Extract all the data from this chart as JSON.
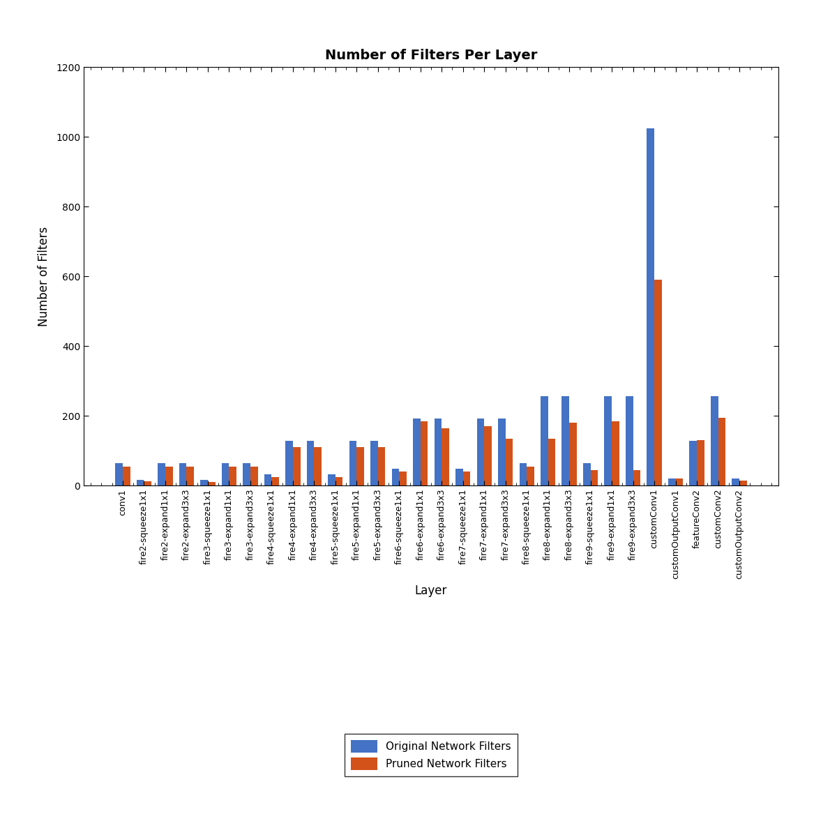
{
  "categories": [
    "conv1",
    "fire2-squeeze1x1",
    "fire2-expand1x1",
    "fire2-expand3x3",
    "fire3-squeeze1x1",
    "fire3-expand1x1",
    "fire3-expand3x3",
    "fire4-squeeze1x1",
    "fire4-expand1x1",
    "fire4-expand3x3",
    "fire5-squeeze1x1",
    "fire5-expand1x1",
    "fire5-expand3x3",
    "fire6-squeeze1x1",
    "fire6-expand1x1",
    "fire6-expand3x3",
    "fire7-squeeze1x1",
    "fire7-expand1x1",
    "fire7-expand3x3",
    "fire8-squeeze1x1",
    "fire8-expand1x1",
    "fire8-expand3x3",
    "fire9-squeeze1x1",
    "fire9-expand1x1",
    "fire9-expand3x3",
    "customConv1",
    "customOutputConv1",
    "featureConv2",
    "customConv2",
    "customOutputConv2"
  ],
  "original": [
    64,
    16,
    64,
    64,
    16,
    64,
    64,
    32,
    128,
    128,
    32,
    128,
    128,
    48,
    192,
    192,
    48,
    192,
    192,
    64,
    256,
    256,
    64,
    256,
    256,
    1024,
    20,
    128,
    256,
    20
  ],
  "pruned": [
    55,
    12,
    55,
    55,
    10,
    55,
    55,
    25,
    110,
    110,
    25,
    110,
    110,
    40,
    185,
    165,
    40,
    170,
    135,
    55,
    135,
    180,
    45,
    185,
    45,
    590,
    20,
    130,
    195,
    15
  ],
  "original_color": "#4472C4",
  "pruned_color": "#D2521A",
  "title": "Number of Filters Per Layer",
  "xlabel": "Layer",
  "ylabel": "Number of Filters",
  "ylim": [
    0,
    1200
  ],
  "yticks": [
    0,
    200,
    400,
    600,
    800,
    1000,
    1200
  ],
  "legend_labels": [
    "Original Network Filters",
    "Pruned Network Filters"
  ],
  "bar_width": 0.35,
  "figsize": [
    12.0,
    12.0
  ],
  "dpi": 100
}
